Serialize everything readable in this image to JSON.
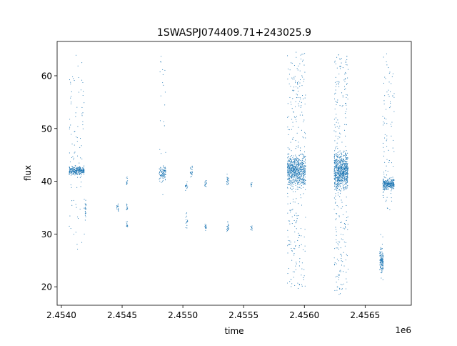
{
  "chart_data": {
    "type": "scatter",
    "title": "1SWASPJ074409.71+243025.9",
    "xlabel": "time",
    "ylabel": "flux",
    "x_offset_label": "1e6",
    "x_scale": 1000000,
    "xlim": [
      2453965,
      2456880
    ],
    "ylim": [
      16.5,
      66.5
    ],
    "x_ticks": [
      2454000,
      2454500,
      2455000,
      2455500,
      2456000,
      2456500
    ],
    "x_tick_labels": [
      "2.4540",
      "2.4545",
      "2.4550",
      "2.4555",
      "2.4560",
      "2.4565"
    ],
    "y_ticks": [
      20,
      30,
      40,
      50,
      60
    ],
    "y_tick_labels": [
      "20",
      "30",
      "40",
      "50",
      "60"
    ],
    "grid": false,
    "legend": "none",
    "marker_color": "#1f77b4",
    "clusters": [
      {
        "x_min": 2454065,
        "x_max": 2454190,
        "center": 42.0,
        "core_spread": 0.7,
        "n": 260,
        "tail_min": 26.5,
        "tail_max": 64.0,
        "tail_n": 90
      },
      {
        "x_min": 2454195,
        "x_max": 2454205,
        "center": 34.5,
        "core_spread": 1.2,
        "n": 18,
        "tail_min": 31.5,
        "tail_max": 36.5,
        "tail_n": 4
      },
      {
        "x_min": 2454455,
        "x_max": 2454470,
        "center": 35.0,
        "core_spread": 0.9,
        "n": 14,
        "tail_min": 33.5,
        "tail_max": 36.8,
        "tail_n": 2
      },
      {
        "x_min": 2454535,
        "x_max": 2454545,
        "center": 40.0,
        "core_spread": 0.6,
        "n": 10,
        "tail_min": 38.5,
        "tail_max": 41.0,
        "tail_n": 2
      },
      {
        "x_min": 2454535,
        "x_max": 2454545,
        "center": 35.0,
        "core_spread": 0.6,
        "n": 10,
        "tail_min": 34.0,
        "tail_max": 36.0,
        "tail_n": 2
      },
      {
        "x_min": 2454535,
        "x_max": 2454545,
        "center": 31.5,
        "core_spread": 0.5,
        "n": 10,
        "tail_min": 31.0,
        "tail_max": 32.5,
        "tail_n": 2
      },
      {
        "x_min": 2454805,
        "x_max": 2454860,
        "center": 41.5,
        "core_spread": 1.2,
        "n": 90,
        "tail_min": 36.5,
        "tail_max": 64.0,
        "tail_n": 25
      },
      {
        "x_min": 2455020,
        "x_max": 2455040,
        "center": 39.2,
        "core_spread": 0.6,
        "n": 14,
        "tail_min": 38.0,
        "tail_max": 40.0,
        "tail_n": 2
      },
      {
        "x_min": 2455020,
        "x_max": 2455040,
        "center": 32.5,
        "core_spread": 1.2,
        "n": 14,
        "tail_min": 31.0,
        "tail_max": 34.0,
        "tail_n": 2
      },
      {
        "x_min": 2455060,
        "x_max": 2455080,
        "center": 41.8,
        "core_spread": 0.8,
        "n": 20,
        "tail_min": 40.5,
        "tail_max": 43.0,
        "tail_n": 2
      },
      {
        "x_min": 2455180,
        "x_max": 2455195,
        "center": 39.5,
        "core_spread": 0.7,
        "n": 14,
        "tail_min": 38.5,
        "tail_max": 40.5,
        "tail_n": 2
      },
      {
        "x_min": 2455180,
        "x_max": 2455195,
        "center": 31.2,
        "core_spread": 0.6,
        "n": 14,
        "tail_min": 30.5,
        "tail_max": 32.0,
        "tail_n": 2
      },
      {
        "x_min": 2455360,
        "x_max": 2455380,
        "center": 40.2,
        "core_spread": 0.8,
        "n": 18,
        "tail_min": 39.0,
        "tail_max": 41.5,
        "tail_n": 2
      },
      {
        "x_min": 2455360,
        "x_max": 2455380,
        "center": 31.5,
        "core_spread": 0.7,
        "n": 18,
        "tail_min": 30.5,
        "tail_max": 33.0,
        "tail_n": 2
      },
      {
        "x_min": 2455555,
        "x_max": 2455570,
        "center": 39.3,
        "core_spread": 0.4,
        "n": 10,
        "tail_min": 38.8,
        "tail_max": 40.0,
        "tail_n": 1
      },
      {
        "x_min": 2455555,
        "x_max": 2455570,
        "center": 31.2,
        "core_spread": 0.4,
        "n": 10,
        "tail_min": 30.8,
        "tail_max": 31.8,
        "tail_n": 1
      },
      {
        "x_min": 2455860,
        "x_max": 2456010,
        "center": 42.0,
        "core_spread": 2.5,
        "n": 650,
        "tail_min": 19.5,
        "tail_max": 64.5,
        "tail_n": 260
      },
      {
        "x_min": 2456245,
        "x_max": 2456360,
        "center": 42.0,
        "core_spread": 2.8,
        "n": 650,
        "tail_min": 18.5,
        "tail_max": 64.0,
        "tail_n": 260
      },
      {
        "x_min": 2456620,
        "x_max": 2456650,
        "center": 25.0,
        "core_spread": 1.8,
        "n": 110,
        "tail_min": 21.0,
        "tail_max": 30.0,
        "tail_n": 20
      },
      {
        "x_min": 2456645,
        "x_max": 2456740,
        "center": 39.5,
        "core_spread": 0.9,
        "n": 260,
        "tail_min": 34.0,
        "tail_max": 64.5,
        "tail_n": 90
      }
    ]
  }
}
